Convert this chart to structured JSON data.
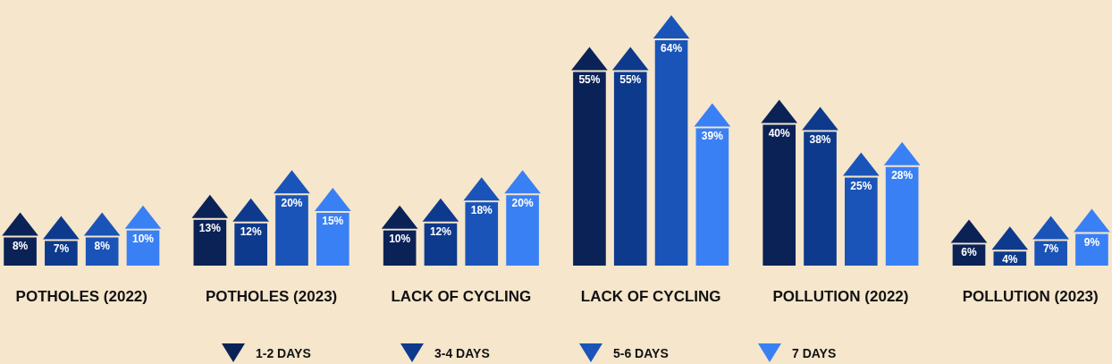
{
  "chart_data": {
    "type": "bar",
    "categories": [
      "POTHOLES (2022)",
      "POTHOLES (2023)",
      "LACK OF CYCLING",
      "LACK OF CYCLING",
      "POLLUTION (2022)",
      "POLLUTION (2023)"
    ],
    "series": [
      {
        "name": "1-2 DAYS",
        "color": "#0b2257",
        "values": [
          8,
          13,
          10,
          55,
          40,
          6
        ],
        "value_labels": [
          "8%",
          "13%",
          "10%",
          "55%",
          "40%",
          "6%"
        ]
      },
      {
        "name": "3-4 DAYS",
        "color": "#0d3a8c",
        "values": [
          7,
          12,
          12,
          55,
          38,
          4
        ],
        "value_labels": [
          "7%",
          "12%",
          "12%",
          "55%",
          "38%",
          "4%"
        ]
      },
      {
        "name": "5-6 DAYS",
        "color": "#1a54b8",
        "values": [
          8,
          20,
          18,
          64,
          25,
          7
        ],
        "value_labels": [
          "8%",
          "20%",
          "18%",
          "64%",
          "25%",
          "7%"
        ]
      },
      {
        "name": "7 DAYS",
        "color": "#3a80f5",
        "values": [
          10,
          15,
          20,
          39,
          28,
          9
        ],
        "value_labels": [
          "10%",
          "15%",
          "20%",
          "39%",
          "28%",
          "9%"
        ]
      }
    ],
    "legend": "bottom"
  }
}
